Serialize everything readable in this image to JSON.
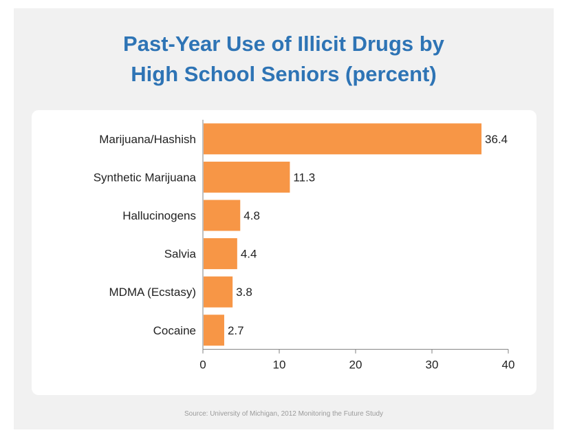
{
  "title_line1": "Past-Year Use of Illicit Drugs by",
  "title_line2": "High School Seniors (percent)",
  "source": "Source: University of Michigan, 2012 Monitoring the Future Study",
  "colors": {
    "bar": "#f79646",
    "title": "#2e74b5",
    "axis": "#7f7f7f"
  },
  "chart_data": {
    "type": "bar",
    "orientation": "horizontal",
    "title": "Past-Year Use of Illicit Drugs by High School Seniors (percent)",
    "categories": [
      "Marijuana/Hashish",
      "Synthetic Marijuana",
      "Hallucinogens",
      "Salvia",
      "MDMA (Ecstasy)",
      "Cocaine"
    ],
    "values": [
      36.4,
      11.3,
      4.8,
      4.4,
      3.8,
      2.7
    ],
    "value_labels": [
      "36.4",
      "11.3",
      "4.8",
      "4.4",
      "3.8",
      "2.7"
    ],
    "xlim": [
      0,
      40
    ],
    "xticks": [
      0,
      10,
      20,
      30,
      40
    ],
    "xtick_labels": [
      "0",
      "10",
      "20",
      "30",
      "40"
    ],
    "grid": false,
    "legend": "none"
  }
}
